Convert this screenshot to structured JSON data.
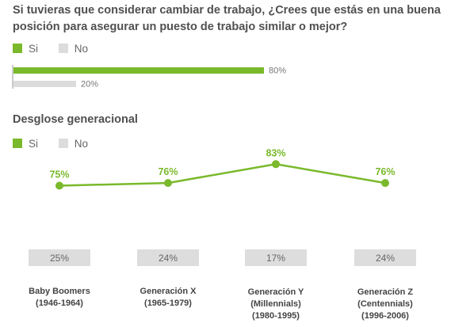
{
  "title": "Si tuvieras que considerar cambiar de trabajo, ¿Crees que estás en una buena posición para asegurar un puesto de trabajo similar o mejor?",
  "legend": [
    {
      "label": "Si",
      "color": "#7ab92b"
    },
    {
      "label": "No",
      "color": "#dcdcdc"
    }
  ],
  "section2_title": "Desglose generacional",
  "chart_data": [
    {
      "type": "bar",
      "orientation": "horizontal",
      "series": [
        {
          "name": "Si",
          "values": [
            80
          ],
          "labels": [
            "80%"
          ]
        },
        {
          "name": "No",
          "values": [
            20
          ],
          "labels": [
            "20%"
          ]
        }
      ],
      "xlim": [
        0,
        100
      ]
    },
    {
      "type": "line",
      "categories": [
        [
          "Baby Boomers",
          "(1946-1964)"
        ],
        [
          "Generación X",
          "(1965-1979)"
        ],
        [
          "Generación Y",
          "(Millennials)",
          "(1980-1995)"
        ],
        [
          "Generación Z",
          "(Centennials)",
          "(1996-2006)"
        ]
      ],
      "series": [
        {
          "name": "Si",
          "type": "line",
          "values": [
            75,
            76,
            83,
            76
          ],
          "labels": [
            "75%",
            "76%",
            "83%",
            "76%"
          ]
        },
        {
          "name": "No",
          "type": "bar",
          "values": [
            25,
            24,
            17,
            24
          ],
          "labels": [
            "25%",
            "24%",
            "17%",
            "24%"
          ]
        }
      ]
    }
  ]
}
